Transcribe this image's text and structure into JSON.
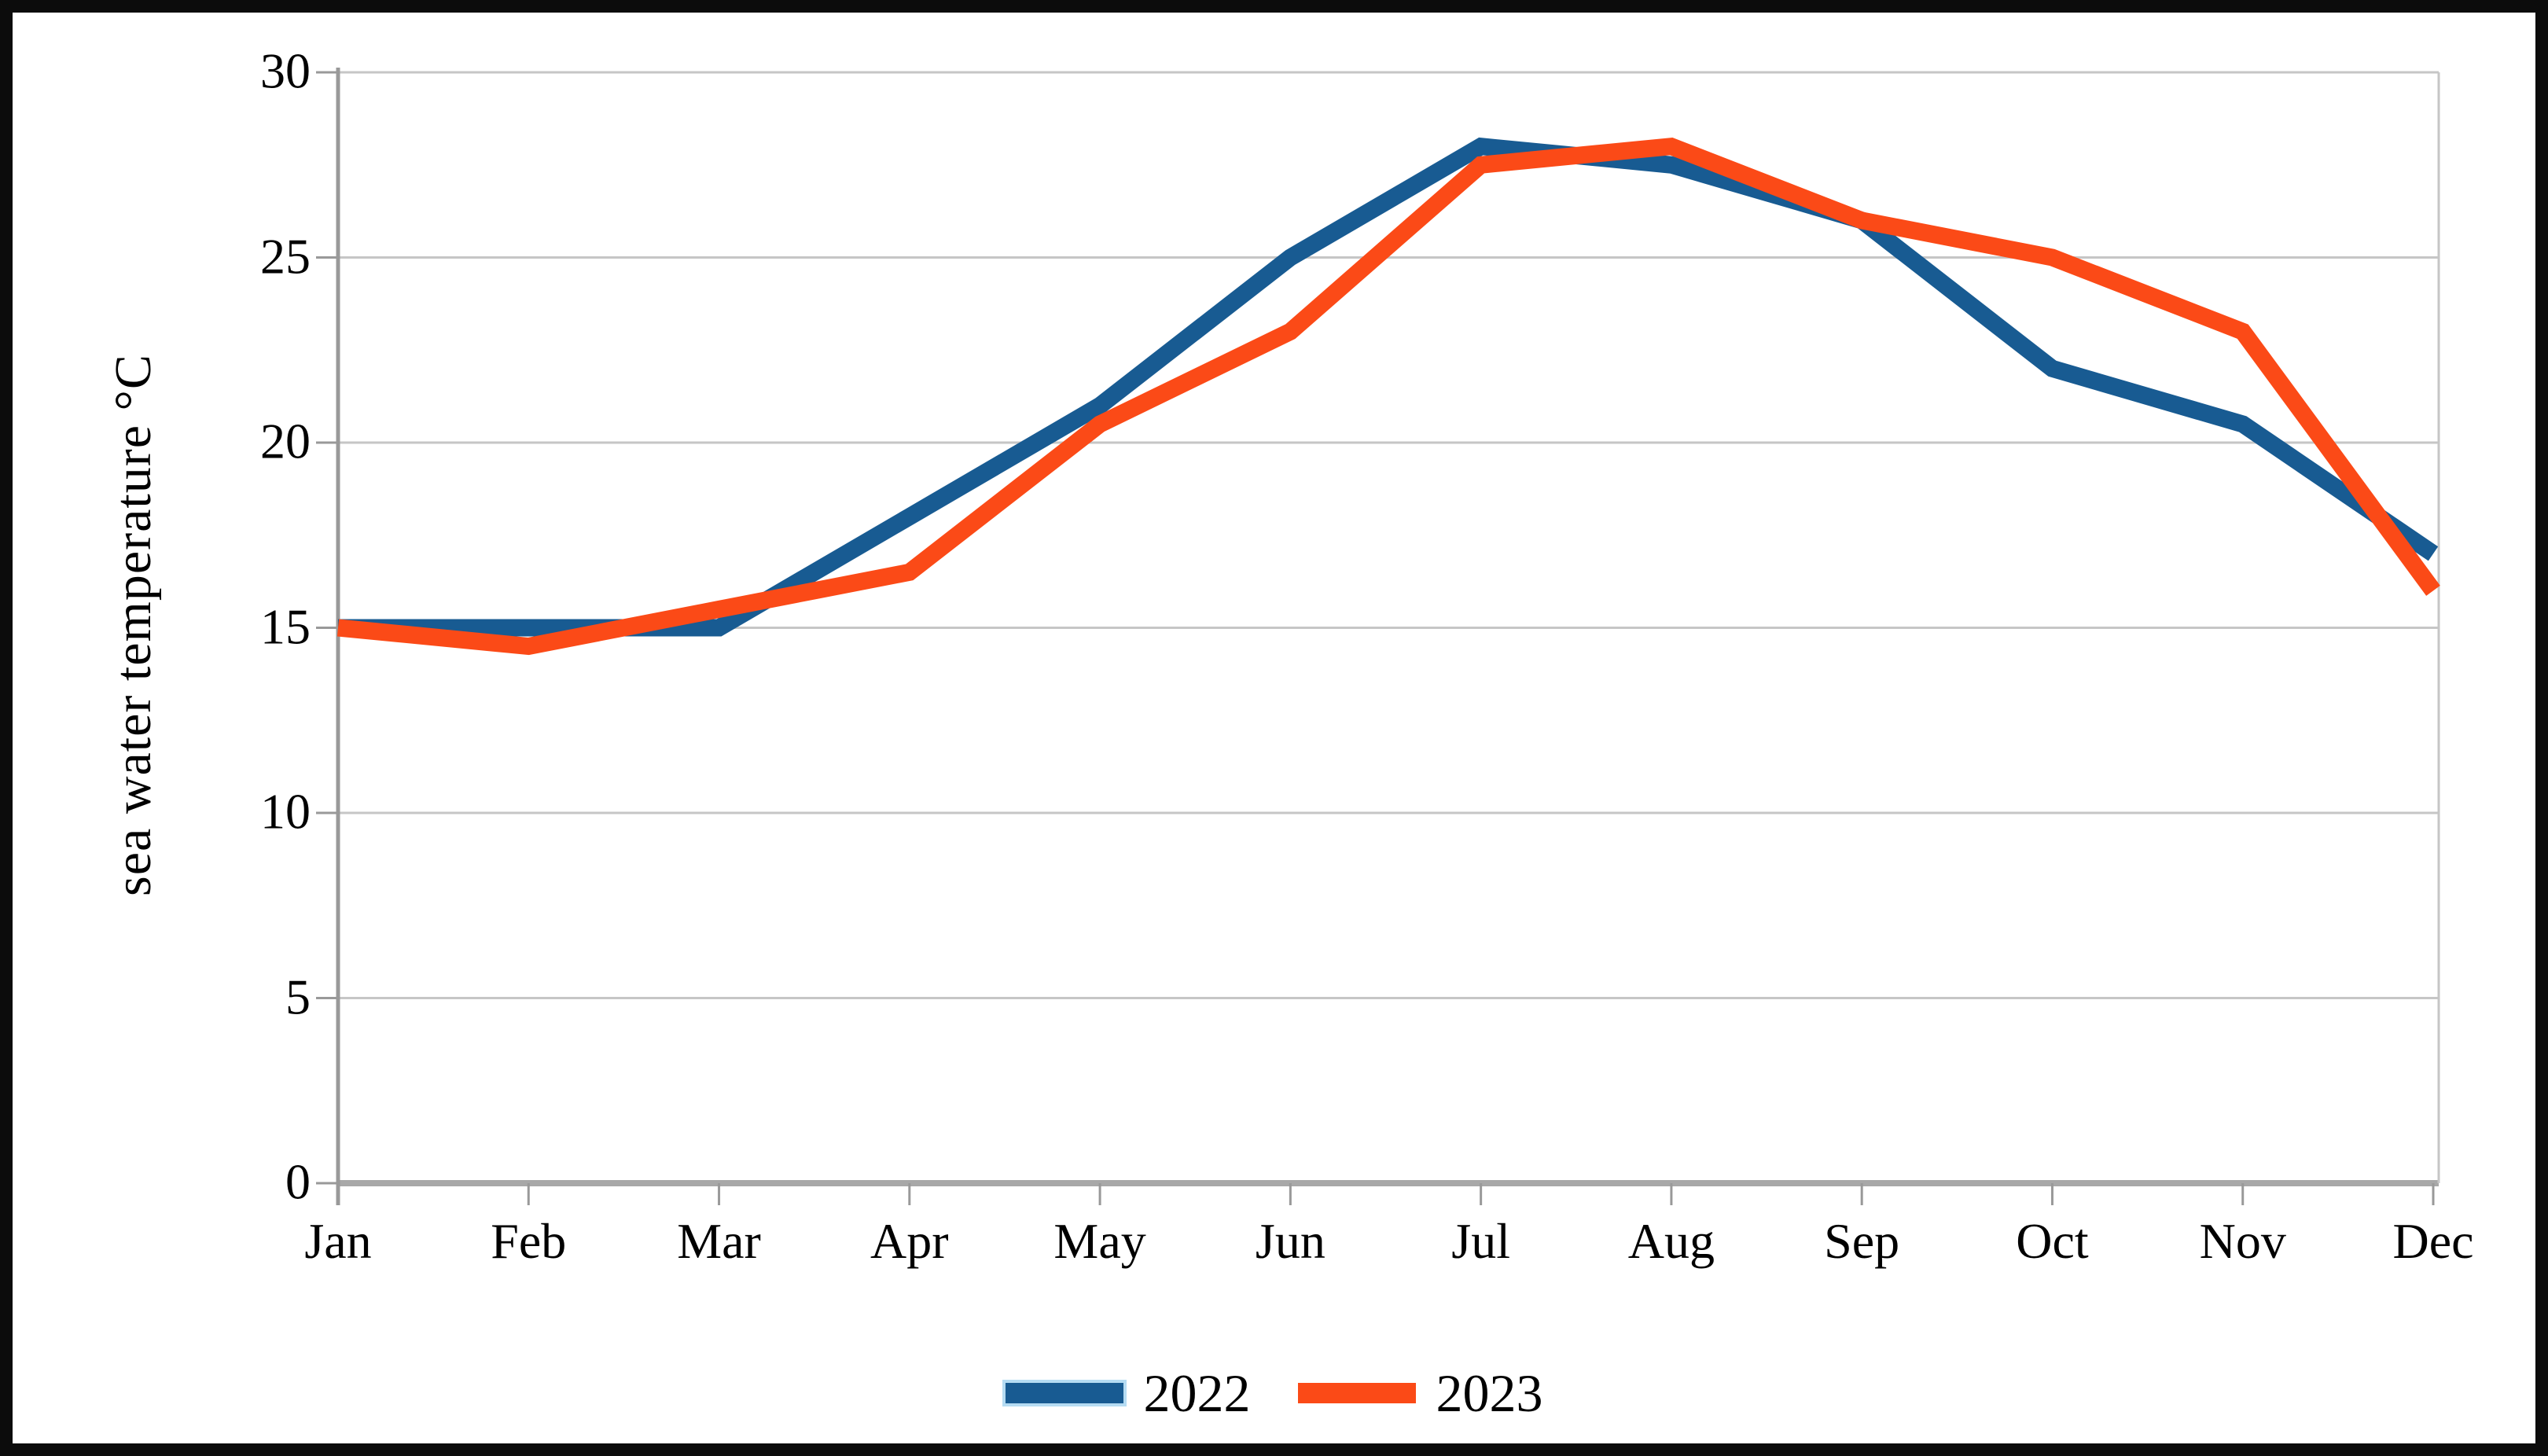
{
  "chart_data": {
    "type": "line",
    "title": "",
    "xlabel": "",
    "ylabel": "sea water temperature °C",
    "categories": [
      "Jan",
      "Feb",
      "Mar",
      "Apr",
      "May",
      "Jun",
      "Jul",
      "Aug",
      "Sep",
      "Oct",
      "Nov",
      "Dec"
    ],
    "series": [
      {
        "name": "2022",
        "color": "#185b92",
        "values": [
          15,
          15,
          15,
          18,
          21,
          25,
          28,
          27.5,
          26,
          22,
          20.5,
          17
        ]
      },
      {
        "name": "2023",
        "color": "#fb4a17",
        "values": [
          15,
          14.5,
          15.5,
          16.5,
          20.5,
          23,
          27.5,
          28,
          26,
          25,
          23,
          16
        ]
      }
    ],
    "ylim": [
      0,
      30
    ],
    "yticks": [
      0,
      5,
      10,
      15,
      20,
      25,
      30
    ],
    "ytick_labels": [
      "0",
      "5",
      "10",
      "15",
      "20",
      "25",
      "30"
    ],
    "grid": "horizontal",
    "legend_position": "bottom-center",
    "colors": {
      "gridline": "#c6c6c6",
      "axis_line": "#999999",
      "zero_line": "#a8a8a8",
      "text": "#000000",
      "frame": "#0c0c0c",
      "background": "#ffffff"
    }
  }
}
